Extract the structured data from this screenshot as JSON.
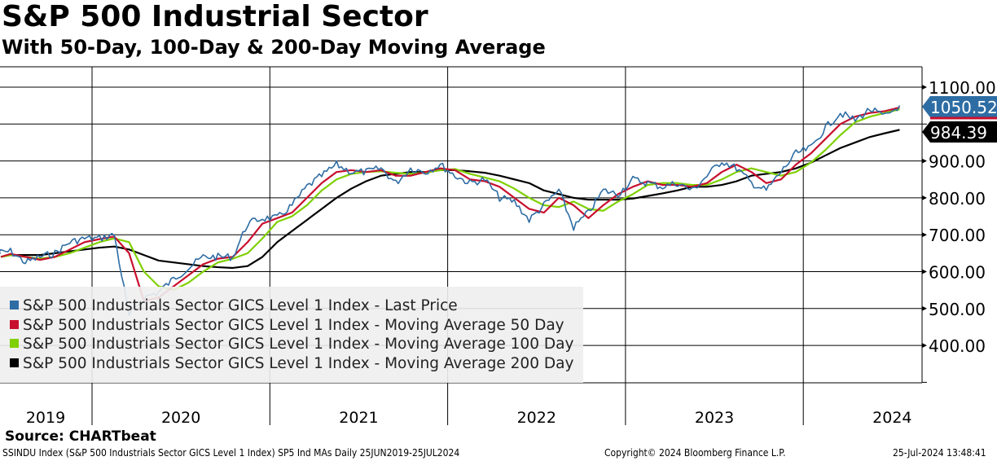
{
  "header": {
    "title": "S&P 500 Industrial Sector",
    "subtitle": "With 50-Day, 100-Day & 200-Day Moving Average"
  },
  "chart_data": {
    "type": "line",
    "title": "S&P 500 Industrial Sector",
    "subtitle": "With 50-Day, 100-Day & 200-Day Moving Average",
    "x_years": [
      "2019",
      "2020",
      "2021",
      "2022",
      "2023",
      "2024"
    ],
    "x": [
      "2019-06",
      "2019-07",
      "2019-08",
      "2019-09",
      "2019-10",
      "2019-11",
      "2019-12",
      "2020-01",
      "2020-02",
      "2020-03",
      "2020-04",
      "2020-05",
      "2020-06",
      "2020-07",
      "2020-08",
      "2020-09",
      "2020-10",
      "2020-11",
      "2020-12",
      "2021-01",
      "2021-02",
      "2021-03",
      "2021-04",
      "2021-05",
      "2021-06",
      "2021-07",
      "2021-08",
      "2021-09",
      "2021-10",
      "2021-11",
      "2021-12",
      "2022-01",
      "2022-02",
      "2022-03",
      "2022-04",
      "2022-05",
      "2022-06",
      "2022-07",
      "2022-08",
      "2022-09",
      "2022-10",
      "2022-11",
      "2022-12",
      "2023-01",
      "2023-02",
      "2023-03",
      "2023-04",
      "2023-05",
      "2023-06",
      "2023-07",
      "2023-08",
      "2023-09",
      "2023-10",
      "2023-11",
      "2023-12",
      "2024-01",
      "2024-02",
      "2024-03",
      "2024-04",
      "2024-05",
      "2024-06",
      "2024-07"
    ],
    "yticks": [
      "1100.00",
      "900.00",
      "800.00",
      "700.00",
      "600.00",
      "500.00",
      "400.00"
    ],
    "ylim": [
      300,
      1155
    ],
    "grid": true,
    "legend_placement": "bottom-left",
    "series": [
      {
        "name": "S&P 500 Industrials Sector GICS Level 1 Index - Last Price",
        "color": "#2e6da4",
        "last_label": "1050.52",
        "values": [
          650,
          655,
          625,
          640,
          650,
          680,
          690,
          690,
          700,
          480,
          530,
          545,
          580,
          610,
          640,
          640,
          640,
          730,
          745,
          745,
          780,
          830,
          860,
          890,
          870,
          870,
          880,
          840,
          880,
          870,
          890,
          860,
          840,
          850,
          800,
          790,
          740,
          780,
          820,
          720,
          760,
          820,
          810,
          850,
          840,
          830,
          840,
          820,
          860,
          900,
          880,
          840,
          820,
          870,
          920,
          935,
          990,
          1030,
          1010,
          1040,
          1020,
          1050.52
        ]
      },
      {
        "name": "S&P 500 Industrials Sector GICS Level 1 Index - Moving Average 50 Day",
        "color": "#c8102e",
        "values": [
          640,
          648,
          640,
          632,
          640,
          660,
          680,
          688,
          695,
          650,
          520,
          530,
          560,
          590,
          620,
          635,
          640,
          680,
          730,
          745,
          760,
          800,
          840,
          870,
          875,
          870,
          875,
          860,
          860,
          870,
          880,
          875,
          850,
          845,
          830,
          800,
          770,
          760,
          800,
          780,
          745,
          780,
          810,
          830,
          845,
          835,
          835,
          830,
          840,
          870,
          890,
          870,
          840,
          850,
          890,
          920,
          960,
          1000,
          1020,
          1030,
          1035,
          1045
        ]
      },
      {
        "name": "S&P 500 Industrials Sector GICS Level 1 Index - Moving Average 100 Day",
        "color": "#7fd000",
        "values": [
          640,
          645,
          640,
          635,
          640,
          650,
          665,
          680,
          690,
          680,
          600,
          560,
          550,
          570,
          600,
          625,
          635,
          650,
          690,
          735,
          750,
          780,
          820,
          850,
          865,
          870,
          872,
          868,
          865,
          868,
          875,
          878,
          865,
          855,
          845,
          825,
          800,
          780,
          775,
          790,
          770,
          765,
          790,
          810,
          835,
          840,
          840,
          835,
          835,
          850,
          870,
          880,
          870,
          860,
          870,
          895,
          930,
          970,
          1005,
          1020,
          1030,
          1040
        ]
      },
      {
        "name": "S&P 500 Industrials Sector GICS Level 1 Index - Moving Average 200 Day",
        "color": "#000000",
        "last_label": "984.39",
        "values": [
          640,
          645,
          645,
          645,
          650,
          655,
          660,
          665,
          668,
          660,
          645,
          630,
          625,
          620,
          615,
          612,
          610,
          615,
          640,
          680,
          710,
          740,
          770,
          800,
          825,
          845,
          860,
          865,
          870,
          870,
          875,
          875,
          872,
          868,
          860,
          850,
          840,
          820,
          810,
          800,
          795,
          795,
          795,
          798,
          805,
          812,
          820,
          830,
          830,
          835,
          845,
          860,
          865,
          870,
          880,
          895,
          915,
          935,
          950,
          965,
          975,
          984.39
        ]
      }
    ]
  },
  "footer": {
    "source": "Source: CHARTbeat",
    "description": "SSINDU Index (S&P 500 Industrials Sector GICS Level 1 Index) SP5 Ind MAs  Daily 25JUN2019-25JUL2024",
    "copyright": "Copyright© 2024 Bloomberg Finance L.P.",
    "timestamp": "25-Jul-2024 13:48:41"
  }
}
